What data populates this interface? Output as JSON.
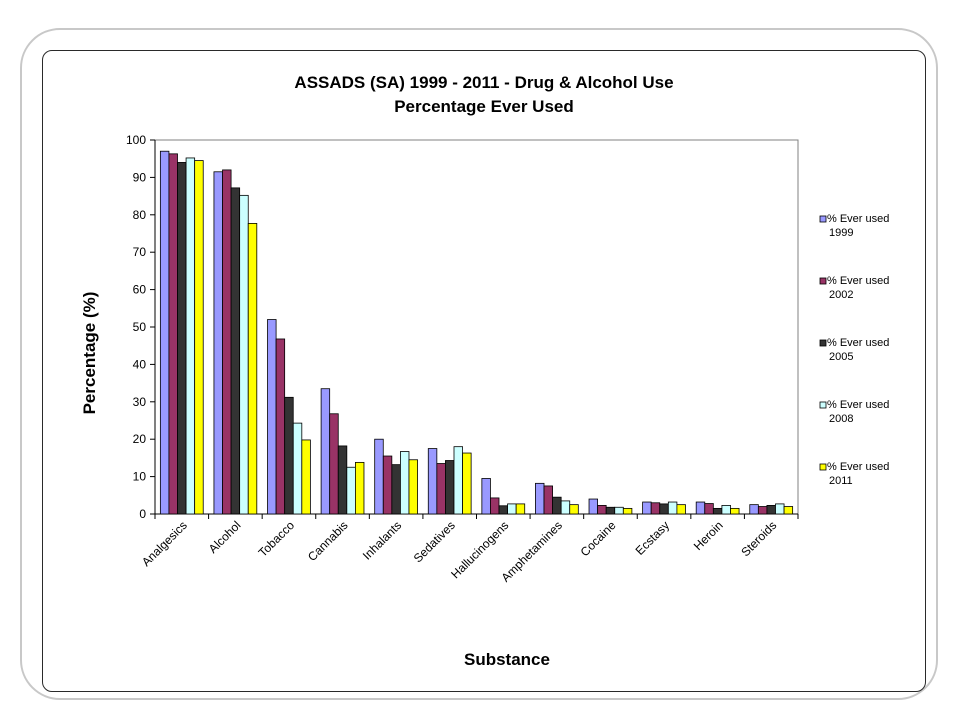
{
  "chart_data": {
    "type": "bar",
    "title": "ASSADS (SA) 1999 - 2011 - Drug & Alcohol Use",
    "subtitle": "Percentage Ever Used",
    "xlabel": "Substance",
    "ylabel": "Percentage (%)",
    "ylim": [
      0,
      100
    ],
    "yticks": [
      0,
      10,
      20,
      30,
      40,
      50,
      60,
      70,
      80,
      90,
      100
    ],
    "grid": false,
    "legend_position": "right",
    "categories": [
      "Analgesics",
      "Alcohol",
      "Tobacco",
      "Cannabis",
      "Inhalants",
      "Sedatives",
      "Hallucinogens",
      "Amphetamines",
      "Cocaine",
      "Ecstasy",
      "Heroin",
      "Steroids"
    ],
    "series": [
      {
        "name": "% Ever used 1999",
        "name_lines": [
          "% Ever used",
          "1999"
        ],
        "color": "#9999ff",
        "values": [
          97,
          91.5,
          52,
          33.5,
          20,
          17.5,
          9.5,
          8.2,
          4,
          3.2,
          3.2,
          2.5
        ]
      },
      {
        "name": "% Ever used 2002",
        "name_lines": [
          "% Ever used",
          "2002"
        ],
        "color": "#993366",
        "values": [
          96.3,
          92,
          46.8,
          26.8,
          15.5,
          13.5,
          4.3,
          7.5,
          2.3,
          3,
          2.8,
          2
        ]
      },
      {
        "name": "% Ever used 2005",
        "name_lines": [
          "% Ever used",
          "2005"
        ],
        "color": "#333333",
        "values": [
          94,
          87.2,
          31.2,
          18.2,
          13.2,
          14.3,
          2.2,
          4.5,
          1.8,
          2.7,
          1.5,
          2.3
        ]
      },
      {
        "name": "% Ever used 2008",
        "name_lines": [
          "% Ever used",
          "2008"
        ],
        "color": "#ccffff",
        "values": [
          95.2,
          85.2,
          24.3,
          12.5,
          16.7,
          18,
          2.7,
          3.5,
          1.8,
          3.2,
          2.3,
          2.7
        ]
      },
      {
        "name": "% Ever used 2011",
        "name_lines": [
          "% Ever used",
          "2011"
        ],
        "color": "#ffff00",
        "values": [
          94.5,
          77.7,
          19.8,
          13.8,
          14.5,
          16.3,
          2.7,
          2.5,
          1.5,
          2.5,
          1.5,
          2
        ]
      }
    ]
  }
}
